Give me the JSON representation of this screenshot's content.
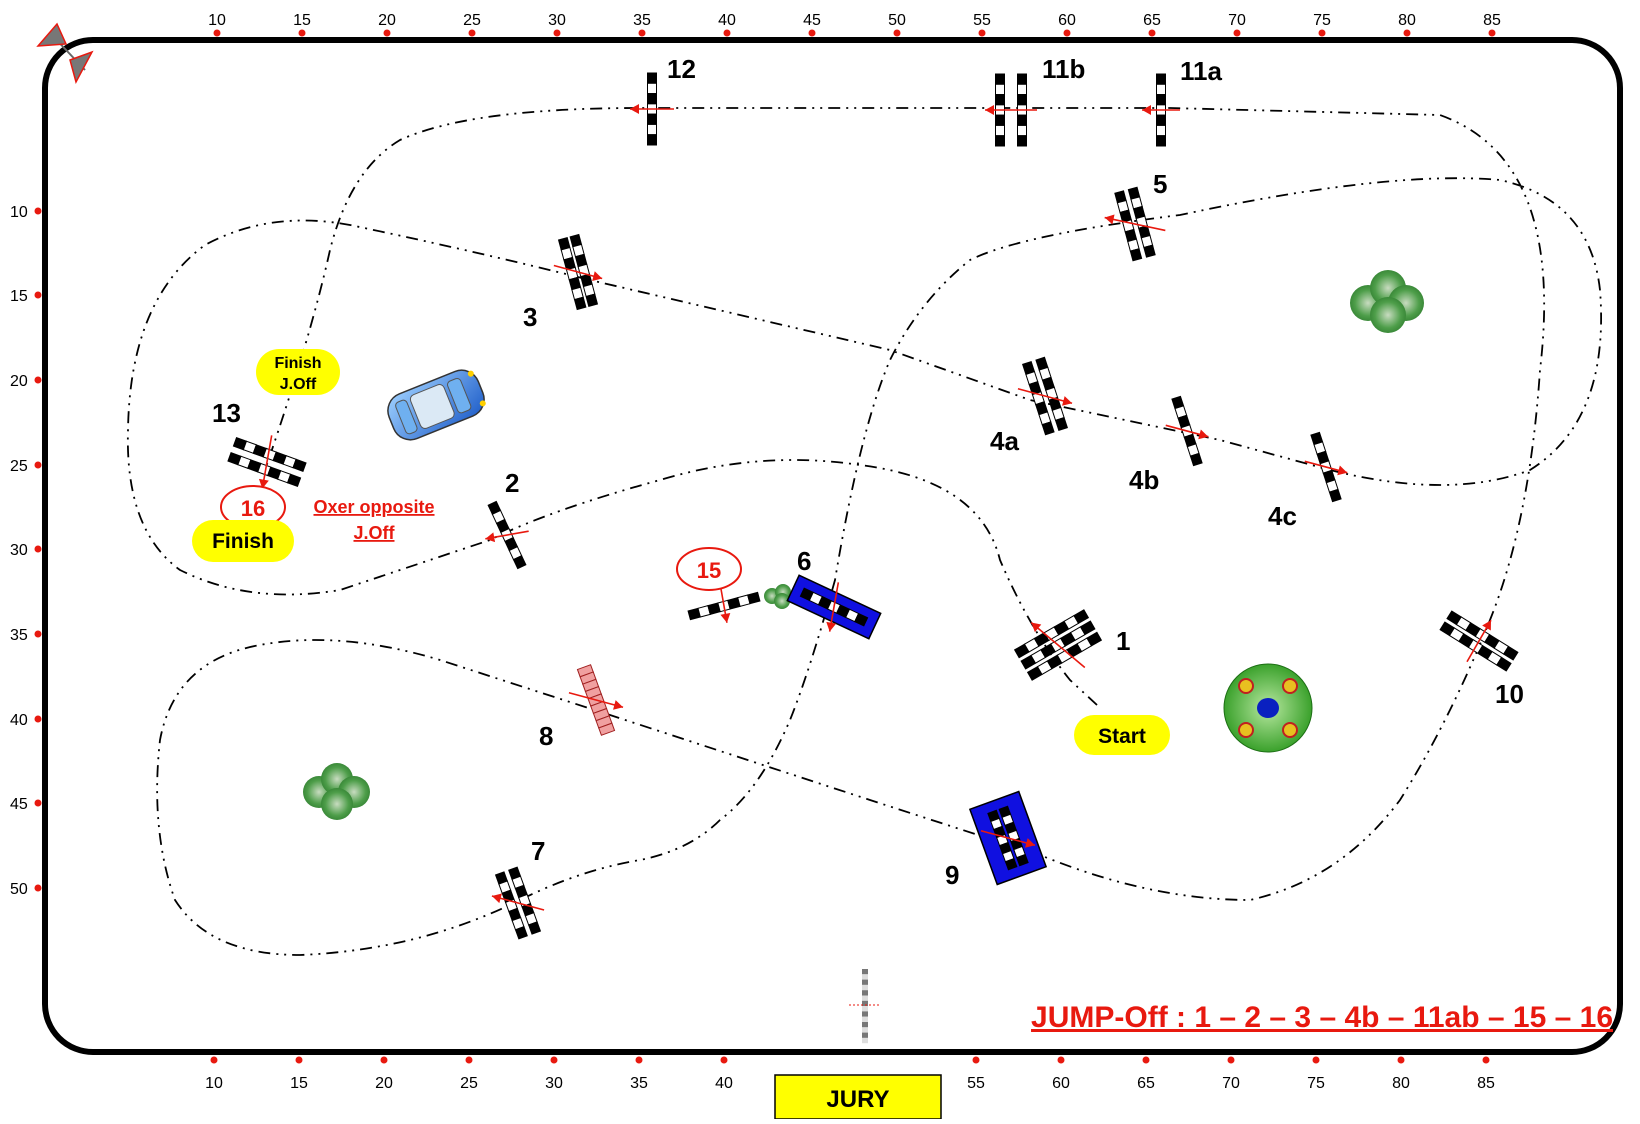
{
  "ruler": {
    "top_ticks": [
      "10",
      "15",
      "20",
      "25",
      "30",
      "35",
      "40",
      "45",
      "50",
      "55",
      "60",
      "65",
      "70",
      "75",
      "80",
      "85"
    ],
    "bottom_ticks": [
      "10",
      "15",
      "20",
      "25",
      "30",
      "35",
      "40",
      "55",
      "60",
      "65",
      "70",
      "75",
      "80",
      "85"
    ],
    "left_ticks": [
      "10",
      "15",
      "20",
      "25",
      "30",
      "35",
      "40",
      "45",
      "50"
    ]
  },
  "obstacles": [
    {
      "label": "1"
    },
    {
      "label": "2"
    },
    {
      "label": "3"
    },
    {
      "label": "4a"
    },
    {
      "label": "4b"
    },
    {
      "label": "4c"
    },
    {
      "label": "5"
    },
    {
      "label": "6"
    },
    {
      "label": "7"
    },
    {
      "label": "8"
    },
    {
      "label": "9"
    },
    {
      "label": "10"
    },
    {
      "label": "11a"
    },
    {
      "label": "11b"
    },
    {
      "label": "12"
    },
    {
      "label": "13"
    }
  ],
  "jumpoff_obstacles": [
    {
      "label": "15"
    },
    {
      "label": "16"
    }
  ],
  "markers": {
    "start": "Start",
    "finish": "Finish",
    "finish_joff_line1": "Finish",
    "finish_joff_line2": "J.Off",
    "oxer_line1": "Oxer opposite",
    "oxer_line2": "J.Off"
  },
  "jumpoff_sequence": "JUMP-Off : 1 – 2 – 3 – 4b – 11ab – 15 – 16",
  "jury": "JURY",
  "colors": {
    "arena_border": "#000000",
    "marker_fill": "#ffff00",
    "accent_red": "#e8190f",
    "water_blue": "#1010e0",
    "bush_green": "#3c9a3c"
  },
  "icons": [
    "compass-arrow-icon",
    "car-icon",
    "bush-icon",
    "flower-island-icon"
  ]
}
